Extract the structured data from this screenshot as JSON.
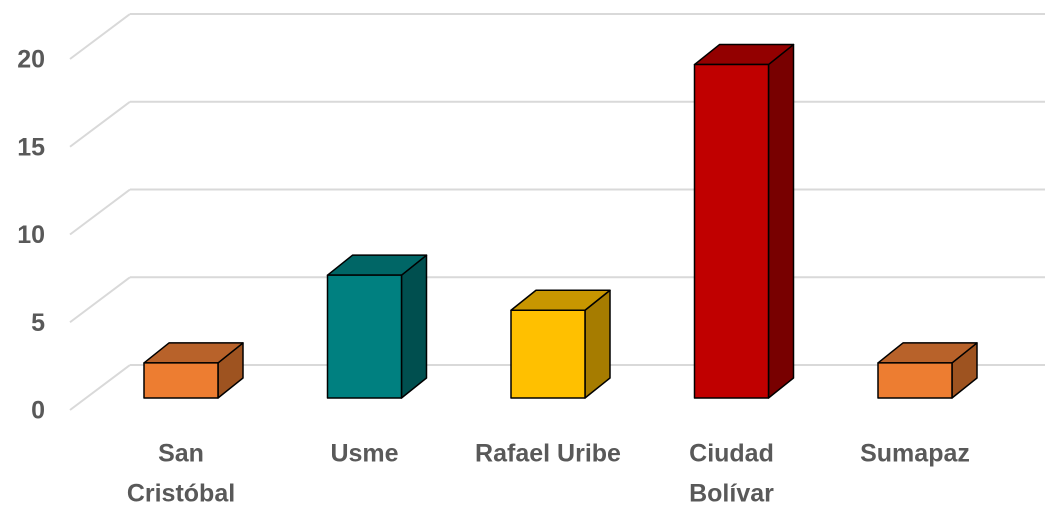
{
  "chart_data": {
    "type": "bar3d",
    "categories": [
      [
        "San",
        "Cristóbal"
      ],
      [
        "Usme"
      ],
      [
        "Rafael Uribe"
      ],
      [
        "Ciudad",
        "Bolívar"
      ],
      [
        "Sumapaz"
      ]
    ],
    "values": [
      2,
      7,
      5,
      19,
      2
    ],
    "colors": [
      {
        "front": "#ED7D31",
        "side": "#9E5320",
        "top": "#B8622A"
      },
      {
        "front": "#008080",
        "side": "#004F4F",
        "top": "#006666"
      },
      {
        "front": "#FFC000",
        "side": "#A67C00",
        "top": "#C89600"
      },
      {
        "front": "#C00000",
        "side": "#780000",
        "top": "#930000"
      },
      {
        "front": "#ED7D31",
        "side": "#9E5320",
        "top": "#B8622A"
      }
    ],
    "ylim": [
      0,
      20
    ],
    "yticks": [
      0,
      5,
      10,
      15,
      20
    ],
    "grid": true
  }
}
